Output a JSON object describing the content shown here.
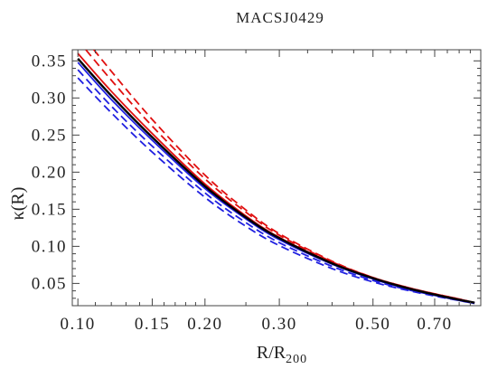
{
  "chart_data": {
    "type": "line",
    "title": "MACSJ0429",
    "xlabel": "R/R",
    "xlabel_sub": "200",
    "ylabel": "κ(R)",
    "x_scale": "log",
    "xlim": [
      0.097,
      0.9
    ],
    "ylim": [
      0.02,
      0.365
    ],
    "x_ticks": [
      0.1,
      0.15,
      0.2,
      0.3,
      0.5,
      0.7
    ],
    "x_tick_labels": [
      "0.10",
      "0.15",
      "0.20",
      "0.30",
      "0.50",
      "0.70"
    ],
    "y_ticks": [
      0.05,
      0.1,
      0.15,
      0.2,
      0.25,
      0.3,
      0.35
    ],
    "y_tick_labels": [
      "0.05",
      "0.10",
      "0.15",
      "0.20",
      "0.25",
      "0.30",
      "0.35"
    ],
    "grid": false,
    "legend": "none",
    "x": [
      0.1,
      0.12,
      0.15,
      0.2,
      0.25,
      0.3,
      0.4,
      0.5,
      0.6,
      0.7,
      0.8,
      0.87
    ],
    "series": [
      {
        "color": "#000000",
        "style": "solid",
        "width": 2.4,
        "values": [
          0.353,
          0.303,
          0.247,
          0.181,
          0.139,
          0.111,
          0.077,
          0.057,
          0.044,
          0.035,
          0.028,
          0.024
        ]
      },
      {
        "color": "#e01010",
        "style": "solid",
        "width": 1.8,
        "values": [
          0.36,
          0.309,
          0.252,
          0.184,
          0.141,
          0.112,
          0.078,
          0.057,
          0.044,
          0.035,
          0.028,
          0.024
        ]
      },
      {
        "color": "#e01010",
        "style": "dashed",
        "width": 1.8,
        "values": [
          0.378,
          0.324,
          0.262,
          0.191,
          0.146,
          0.115,
          0.079,
          0.058,
          0.045,
          0.036,
          0.029,
          0.024
        ]
      },
      {
        "color": "#e01010",
        "style": "dashed",
        "width": 1.8,
        "values": [
          0.392,
          0.336,
          0.271,
          0.196,
          0.149,
          0.117,
          0.08,
          0.058,
          0.045,
          0.036,
          0.029,
          0.024
        ]
      },
      {
        "color": "#2020e0",
        "style": "solid",
        "width": 1.8,
        "values": [
          0.348,
          0.298,
          0.243,
          0.178,
          0.137,
          0.109,
          0.076,
          0.056,
          0.043,
          0.034,
          0.028,
          0.024
        ]
      },
      {
        "color": "#2020e0",
        "style": "dashed",
        "width": 1.8,
        "values": [
          0.338,
          0.289,
          0.235,
          0.172,
          0.132,
          0.105,
          0.073,
          0.054,
          0.042,
          0.034,
          0.027,
          0.023
        ]
      },
      {
        "color": "#2020e0",
        "style": "dashed",
        "width": 1.8,
        "values": [
          0.327,
          0.28,
          0.227,
          0.166,
          0.127,
          0.101,
          0.07,
          0.052,
          0.041,
          0.033,
          0.027,
          0.023
        ]
      }
    ]
  }
}
